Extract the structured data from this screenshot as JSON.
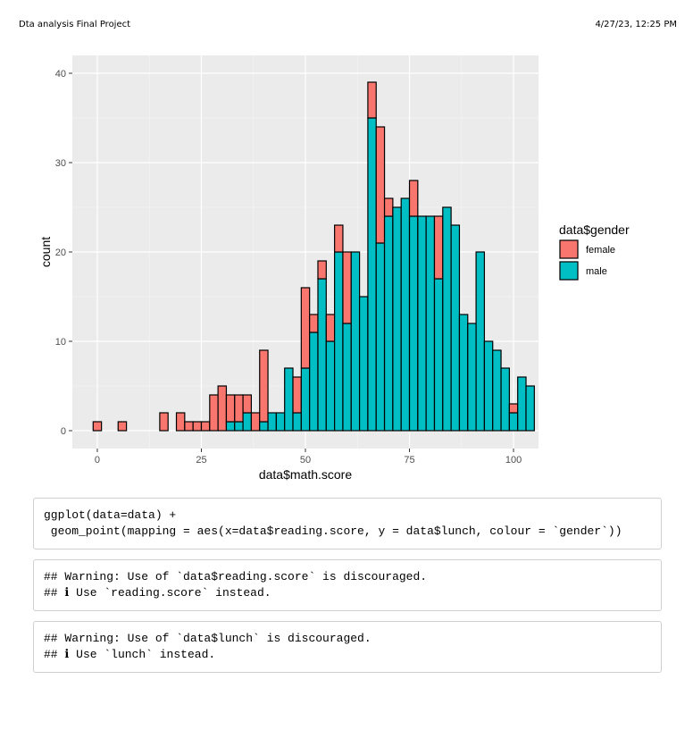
{
  "header": {
    "title": "Dta analysis Final Project",
    "date": "4/27/23, 12:25 PM"
  },
  "chart_data": {
    "type": "bar",
    "stacked": true,
    "bin_width": 2,
    "x_start": -1,
    "xlabel": "data$math.score",
    "ylabel": "count",
    "xlim": [
      -6,
      106
    ],
    "ylim": [
      -2,
      42
    ],
    "x_ticks": [
      "0",
      "25",
      "50",
      "75",
      "100"
    ],
    "y_ticks": [
      "0",
      "10",
      "20",
      "30",
      "40"
    ],
    "legend": {
      "title": "data$gender",
      "placement": "right",
      "entries": [
        "female",
        "male"
      ]
    },
    "series": [
      {
        "name": "male",
        "color": "#00BFC4",
        "values": [
          0,
          0,
          0,
          0,
          0,
          0,
          0,
          0,
          0,
          0,
          0,
          0,
          0,
          0,
          0,
          0,
          1,
          1,
          2,
          0,
          1,
          2,
          2,
          7,
          2,
          7,
          11,
          17,
          10,
          20,
          12,
          20,
          15,
          35,
          21,
          24,
          25,
          26,
          24,
          24,
          24,
          17,
          25,
          23,
          13,
          12,
          20,
          10,
          9,
          7,
          2,
          6,
          5
        ]
      },
      {
        "name": "female",
        "color": "#F8766D",
        "values": [
          1,
          0,
          0,
          1,
          0,
          0,
          0,
          0,
          2,
          0,
          2,
          1,
          1,
          1,
          4,
          5,
          3,
          3,
          2,
          2,
          8,
          0,
          0,
          0,
          4,
          9,
          2,
          2,
          3,
          3,
          8,
          0,
          0,
          4,
          13,
          2,
          0,
          0,
          4,
          0,
          0,
          7,
          0,
          0,
          0,
          0,
          0,
          0,
          0,
          0,
          1,
          0,
          0
        ]
      }
    ]
  },
  "code_blocks": [
    {
      "lines": [
        "ggplot(data=data) +",
        " geom_point(mapping = aes(x=data$reading.score, y = data$lunch, colour = `gender`))"
      ]
    },
    {
      "lines": [
        "## Warning: Use of `data$reading.score` is discouraged.",
        "## ℹ Use `reading.score` instead."
      ]
    },
    {
      "lines": [
        "## Warning: Use of `data$lunch` is discouraged.",
        "## ℹ Use `lunch` instead."
      ]
    }
  ]
}
